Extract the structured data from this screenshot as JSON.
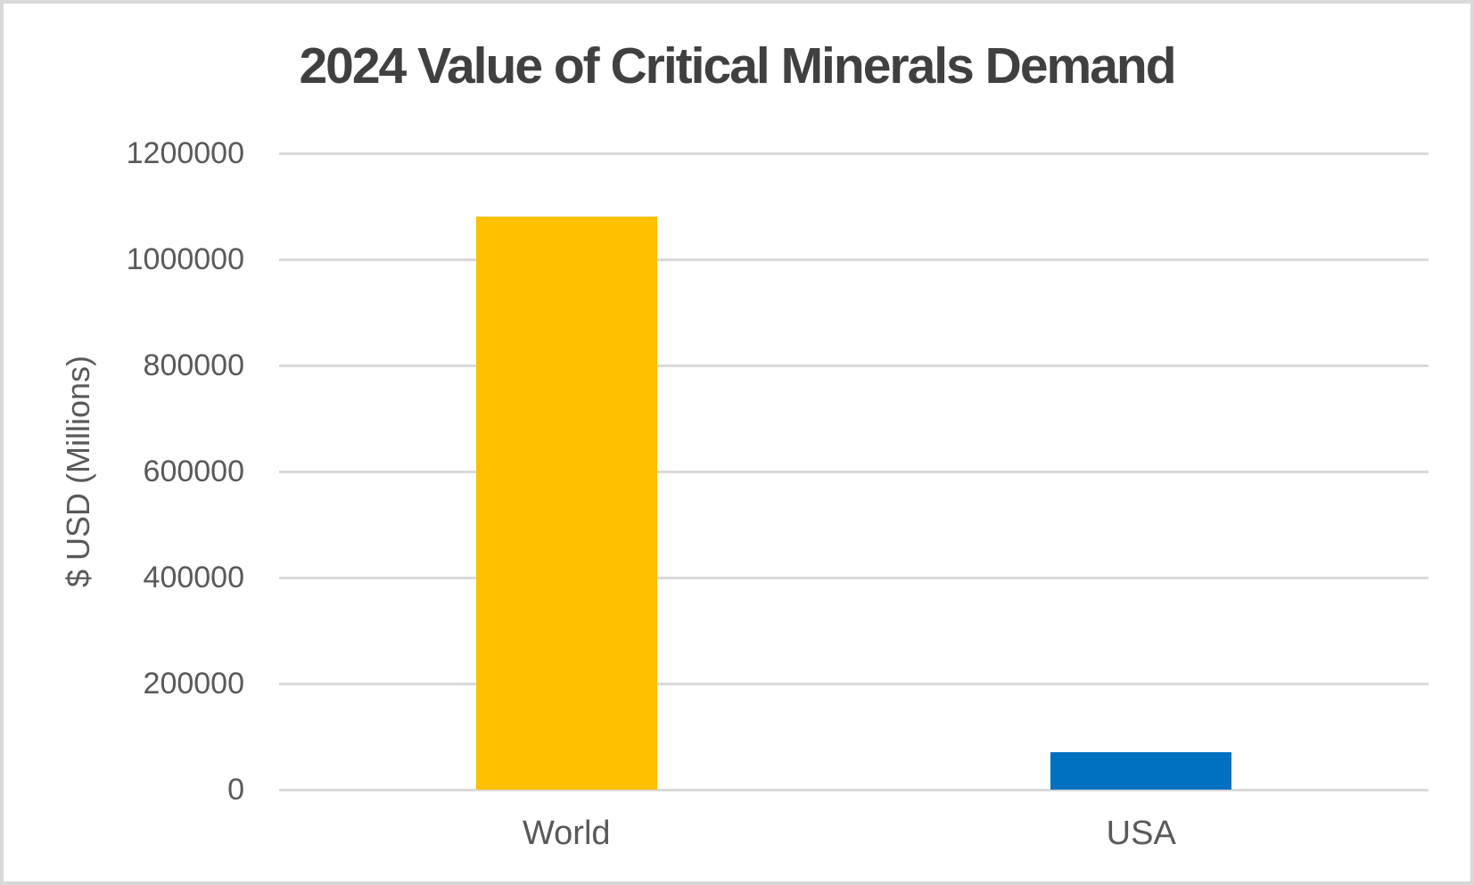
{
  "chart_data": {
    "type": "bar",
    "title": "2024 Value of Critical Minerals Demand",
    "categories": [
      "World",
      "USA"
    ],
    "values": [
      1080000,
      70000
    ],
    "bar_colors": [
      "#FFC000",
      "#0070C0"
    ],
    "xlabel": "",
    "ylabel": "$ USD (Millions)",
    "ylim": [
      0,
      1200000
    ],
    "yticks": [
      0,
      200000,
      400000,
      600000,
      800000,
      1000000,
      1200000
    ],
    "ytick_labels": [
      "0",
      "200000",
      "400000",
      "600000",
      "800000",
      "1000000",
      "1200000"
    ],
    "grid": true,
    "legend_position": "none",
    "colors": {
      "title_text": "#404040",
      "axis_text": "#595959",
      "gridline": "#d9d9d9",
      "background": "#ffffff",
      "frame_border": "#d9d9d9"
    }
  }
}
